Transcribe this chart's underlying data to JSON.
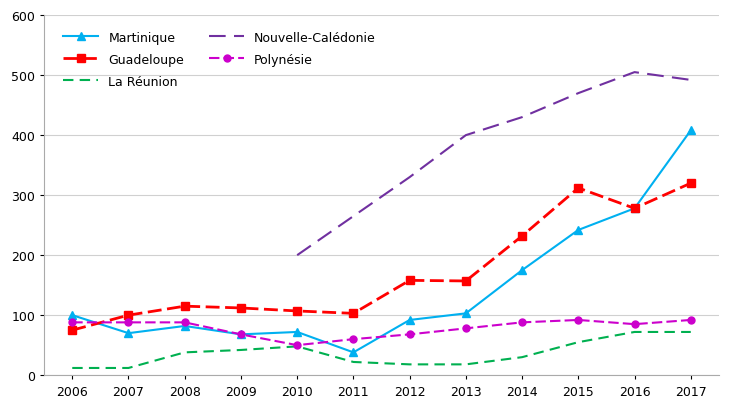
{
  "years": [
    2006,
    2007,
    2008,
    2009,
    2010,
    2011,
    2012,
    2013,
    2014,
    2015,
    2016,
    2017
  ],
  "martinique": [
    100,
    70,
    82,
    68,
    72,
    38,
    92,
    103,
    175,
    242,
    278,
    408
  ],
  "guadeloupe": [
    75,
    100,
    115,
    112,
    107,
    103,
    158,
    157,
    232,
    312,
    278,
    320
  ],
  "la_reunion": [
    12,
    12,
    38,
    42,
    48,
    22,
    18,
    18,
    30,
    55,
    72,
    72
  ],
  "nouvelle_caledonie": [
    null,
    null,
    null,
    null,
    200,
    null,
    330,
    400,
    430,
    470,
    505,
    492
  ],
  "polynesie": [
    88,
    88,
    88,
    68,
    50,
    60,
    68,
    78,
    88,
    92,
    85,
    92
  ],
  "colors": {
    "martinique": "#00b0f0",
    "guadeloupe": "#ff0000",
    "la_reunion": "#00b050",
    "nouvelle_caledonie": "#7030a0",
    "polynesie": "#cc00cc"
  },
  "ylim": [
    0,
    600
  ],
  "yticks": [
    0,
    100,
    200,
    300,
    400,
    500,
    600
  ],
  "background_color": "#ffffff",
  "legend_rows": [
    [
      "Martinique",
      "Guadeloupe"
    ],
    [
      "La Réunion",
      "Nouvelle-Calédonie"
    ],
    [
      "Polynésie",
      ""
    ]
  ]
}
